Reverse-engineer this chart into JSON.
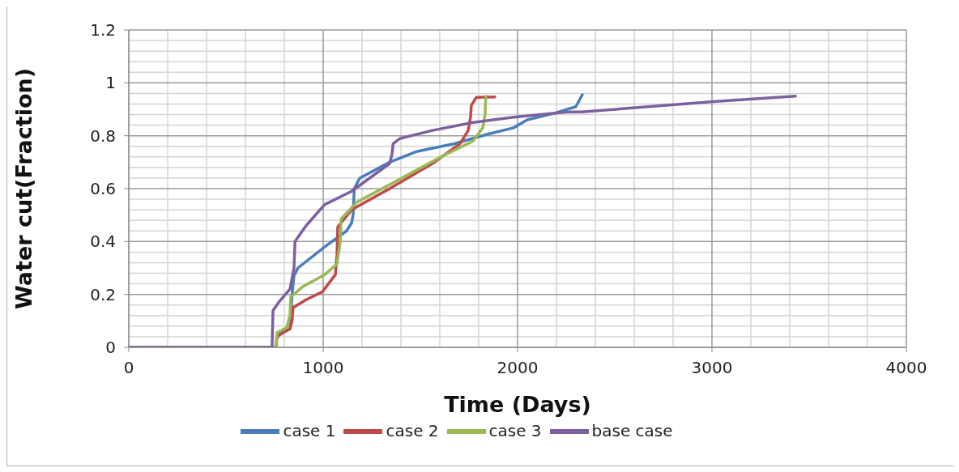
{
  "chart_data": {
    "type": "line",
    "xlabel": "Time (Days)",
    "ylabel": "Water cut(Fraction)",
    "xlim": [
      0,
      4000
    ],
    "xticks": [
      0,
      1000,
      2000,
      3000,
      4000
    ],
    "ylim": [
      0,
      1.2
    ],
    "yticks": [
      0,
      0.2,
      0.4,
      0.6,
      0.8,
      1,
      1.2
    ],
    "grid": true,
    "legend": "bottom",
    "line_style": "solid",
    "marker": "none",
    "series": [
      {
        "name": "case 1",
        "color": "#4a7ebb",
        "x": [
          765,
          830,
          840,
          850,
          870,
          1008,
          1120,
          1146,
          1154,
          1160,
          1188,
          1342,
          1479,
          1675,
          1842,
          1979,
          2050,
          2189,
          2300,
          2333
        ],
        "values": [
          0.05,
          0.07,
          0.2,
          0.27,
          0.3,
          0.38,
          0.44,
          0.47,
          0.5,
          0.6,
          0.64,
          0.7,
          0.74,
          0.77,
          0.805,
          0.83,
          0.86,
          0.885,
          0.91,
          0.955
        ]
      },
      {
        "name": "case 2",
        "color": "#be4b48",
        "x": [
          0,
          758,
          760,
          771,
          829,
          840,
          845,
          912,
          996,
          1063,
          1071,
          1075,
          1146,
          1354,
          1562,
          1704,
          1746,
          1758,
          1762,
          1788,
          1883
        ],
        "values": [
          0,
          0,
          0.03,
          0.045,
          0.07,
          0.1,
          0.15,
          0.18,
          0.21,
          0.275,
          0.35,
          0.455,
          0.52,
          0.605,
          0.695,
          0.77,
          0.82,
          0.87,
          0.915,
          0.945,
          0.947
        ]
      },
      {
        "name": "case 3",
        "color": "#98b954",
        "x": [
          0,
          760,
          762,
          813,
          829,
          833,
          896,
          1008,
          1071,
          1088,
          1092,
          1175,
          1354,
          1592,
          1771,
          1821,
          1833,
          1836,
          1838
        ],
        "values": [
          0,
          0,
          0.055,
          0.075,
          0.12,
          0.19,
          0.23,
          0.275,
          0.315,
          0.4,
          0.485,
          0.55,
          0.62,
          0.715,
          0.78,
          0.83,
          0.88,
          0.94,
          0.95
        ]
      },
      {
        "name": "base case",
        "color": "#7d60a0",
        "x": [
          0,
          737,
          742,
          771,
          829,
          850,
          855,
          912,
          1008,
          1146,
          1342,
          1354,
          1360,
          1396,
          1562,
          1771,
          1979,
          2258,
          2329,
          3021,
          3430
        ],
        "values": [
          0,
          0,
          0.139,
          0.17,
          0.22,
          0.3,
          0.4,
          0.46,
          0.54,
          0.59,
          0.695,
          0.73,
          0.77,
          0.79,
          0.82,
          0.85,
          0.87,
          0.89,
          0.89,
          0.93,
          0.95
        ]
      }
    ]
  }
}
